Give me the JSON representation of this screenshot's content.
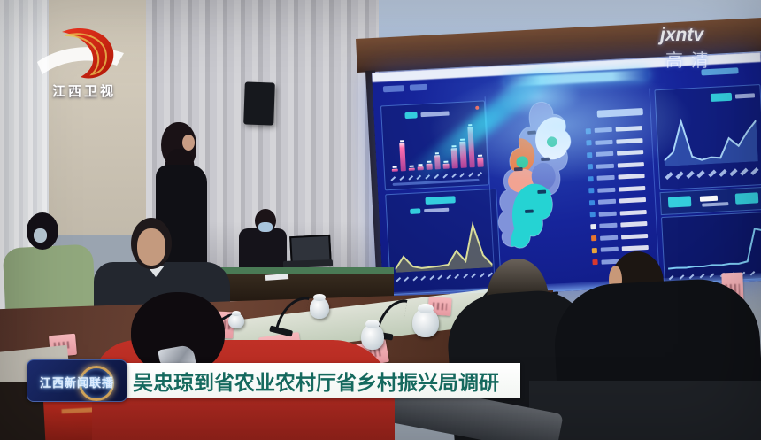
{
  "broadcast": {
    "channel_logo": "江西卫视",
    "watermark_script": "jxntv",
    "watermark_hd": "高清"
  },
  "caption": {
    "badge_label": "江西新闻联播",
    "headline": "吴忠琼到省农业农村厅省乡村振兴局调研",
    "headline_color": "#15695e",
    "bar_color": "#fafcfa",
    "badge_bg": "#101c4e"
  },
  "dashboard": {
    "screen_bg": "#131f86",
    "panel_border": "#4a7ae0",
    "accent_cyan": "#38e0e8",
    "bar_chart": {
      "type": "bar",
      "values": [
        6,
        62,
        6,
        8,
        14,
        30,
        12,
        45,
        58,
        88,
        22
      ],
      "bar_color": "#ff6fae"
    },
    "area_chart_left": {
      "type": "area",
      "values": [
        6,
        30,
        10,
        6,
        7,
        8,
        10,
        36,
        15,
        85,
        25,
        5
      ],
      "line_color": "#d9dd9b",
      "fill": "#9a9a52"
    },
    "area_chart_right": {
      "type": "area",
      "values": [
        10,
        25,
        80,
        15,
        8,
        12,
        10,
        45,
        30,
        55,
        75
      ],
      "line_color": "#a8d4f8",
      "fill": "#4a7ad0"
    },
    "line_chart_bottom": {
      "type": "line",
      "values": [
        8,
        9,
        8,
        10,
        9,
        11,
        10,
        12,
        11,
        15,
        85,
        80
      ],
      "line_color": "#7ecbf2"
    },
    "list": {
      "row_count": 12,
      "marker_colors": [
        "#3a8ae0",
        "#3a8ae0",
        "#3a8ae0",
        "#3a8ae0",
        "#3a8ae0",
        "#3a8ae0",
        "#3a8ae0",
        "#3a8ae0",
        "#e8ecf2",
        "#e8762e",
        "#e8a43a",
        "#d8382e"
      ]
    },
    "map_colors": {
      "base": "#8093da",
      "white": "#f3f6ff",
      "orange": "#ef7a3e",
      "salmon": "#f2a392",
      "cyan": "#25d3d3",
      "teal": "#2cc79a",
      "deep_blue": "#6a7ed0"
    }
  }
}
